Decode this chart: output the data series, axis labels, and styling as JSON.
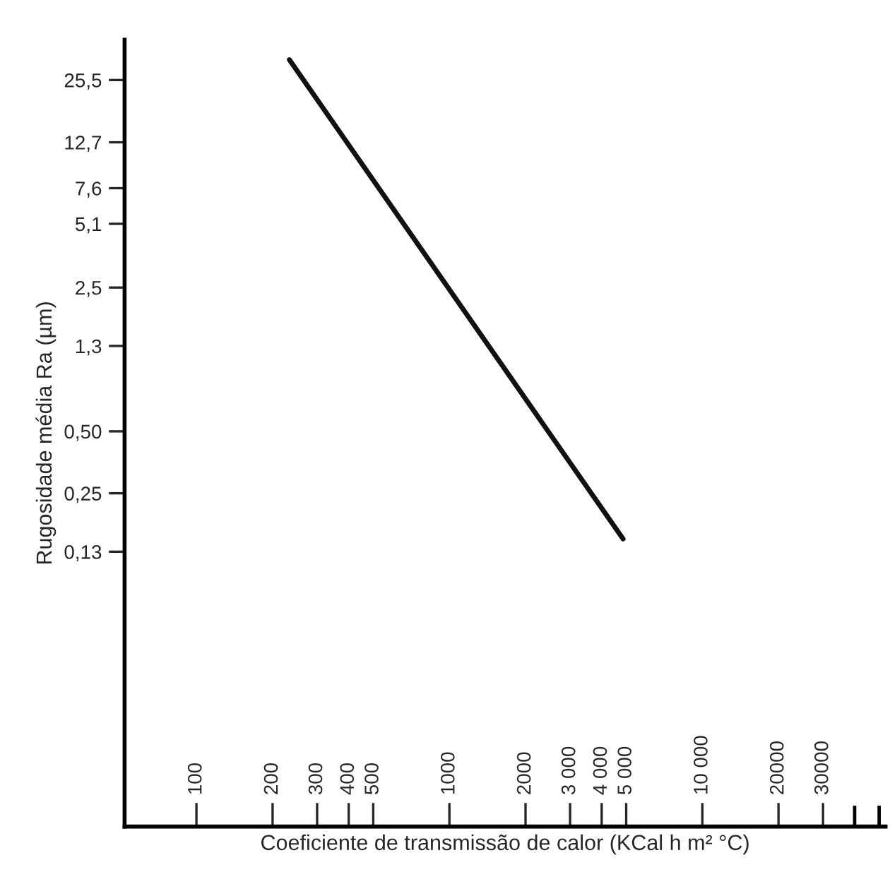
{
  "chart_data": {
    "type": "line",
    "xlabel": "Coeficiente de transmissão de calor (KCal h m² °C)",
    "ylabel": "Rugosidade média Ra (µm)",
    "x": [
      233,
      4860
    ],
    "series": [
      {
        "color": "#111111",
        "values": [
          32,
          0.15
        ]
      }
    ],
    "log": "xy",
    "xlim": [
      52,
      53000
    ],
    "xticks": [
      100,
      200,
      300,
      400,
      500,
      1000,
      2000,
      {
        "value": 3000,
        "label": "3 000"
      },
      {
        "value": 4000,
        "label": "4 000"
      },
      {
        "value": 5000,
        "label": "5 000"
      },
      {
        "value": 10000,
        "label": "10 000"
      },
      20000,
      30000,
      {
        "value": 40000,
        "label": null
      },
      {
        "value": 50000,
        "label": null
      }
    ],
    "ylim": [
      0.006,
      40
    ],
    "yticks": [
      {
        "value": 25.5,
        "label": "25,5"
      },
      {
        "value": 12.7,
        "label": "12,7"
      },
      {
        "value": 7.6,
        "label": "7,6"
      },
      {
        "value": 5.1,
        "label": "5,1"
      },
      {
        "value": 2.5,
        "label": "2,5"
      },
      {
        "value": 1.3,
        "label": "1,3"
      },
      {
        "value": 0.5,
        "label": "0,50"
      },
      {
        "value": 0.25,
        "label": "0,25"
      },
      {
        "value": 0.13,
        "label": "0,13"
      }
    ],
    "grid": false,
    "legend": false,
    "line_style": "solid",
    "marker": "none"
  }
}
